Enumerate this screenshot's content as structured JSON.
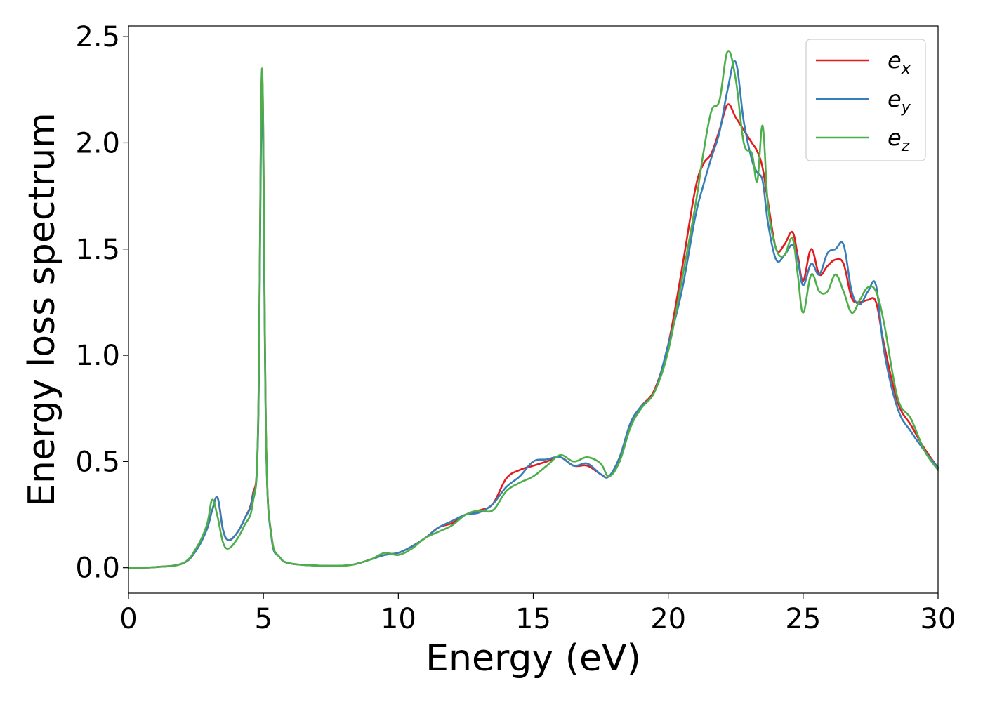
{
  "chart_data": {
    "type": "line",
    "title": "",
    "xlabel": "Energy (eV)",
    "ylabel": "Energy loss spectrum",
    "xlim": [
      0,
      30
    ],
    "ylim": [
      -0.12,
      2.55
    ],
    "xticks": [
      0,
      5,
      10,
      15,
      20,
      25,
      30
    ],
    "yticks": [
      0.0,
      0.5,
      1.0,
      1.5,
      2.0,
      2.5
    ],
    "xtick_labels": [
      "0",
      "5",
      "10",
      "15",
      "20",
      "25",
      "30"
    ],
    "ytick_labels": [
      "0.0",
      "0.5",
      "1.0",
      "1.5",
      "2.0",
      "2.5"
    ],
    "grid": false,
    "legend_position": "top-right",
    "series": [
      {
        "name": "e_x",
        "label_base": "e",
        "label_sub": "x",
        "color": "#e41a1c",
        "x": [
          0,
          1,
          2,
          2.5,
          2.9,
          3.1,
          3.3,
          3.5,
          3.7,
          4.0,
          4.3,
          4.6,
          4.8,
          4.95,
          5.1,
          5.3,
          5.6,
          6.0,
          7.0,
          8.0,
          8.5,
          9.0,
          9.5,
          10.0,
          10.5,
          11.0,
          11.5,
          12.0,
          12.5,
          13.0,
          13.5,
          14.0,
          14.5,
          15.0,
          15.5,
          16.0,
          16.5,
          17.0,
          17.5,
          17.8,
          18.2,
          18.6,
          19.0,
          19.5,
          20.0,
          20.5,
          21.0,
          21.3,
          21.6,
          21.9,
          22.2,
          22.5,
          22.8,
          23.1,
          23.3,
          23.5,
          23.7,
          24.0,
          24.3,
          24.6,
          24.8,
          25.0,
          25.3,
          25.6,
          25.9,
          26.2,
          26.5,
          26.8,
          27.1,
          27.4,
          27.7,
          28.0,
          28.5,
          29.0,
          29.5,
          30.0
        ],
        "y": [
          0.0,
          0.003,
          0.02,
          0.08,
          0.18,
          0.27,
          0.33,
          0.18,
          0.13,
          0.16,
          0.23,
          0.34,
          0.65,
          2.33,
          0.6,
          0.15,
          0.05,
          0.02,
          0.01,
          0.01,
          0.02,
          0.04,
          0.06,
          0.07,
          0.1,
          0.14,
          0.19,
          0.21,
          0.25,
          0.27,
          0.3,
          0.42,
          0.46,
          0.48,
          0.5,
          0.52,
          0.48,
          0.48,
          0.44,
          0.43,
          0.52,
          0.68,
          0.76,
          0.84,
          1.05,
          1.4,
          1.78,
          1.9,
          1.95,
          2.06,
          2.18,
          2.12,
          2.06,
          2.0,
          1.96,
          1.88,
          1.72,
          1.5,
          1.52,
          1.58,
          1.47,
          1.35,
          1.5,
          1.38,
          1.42,
          1.45,
          1.43,
          1.27,
          1.25,
          1.26,
          1.25,
          1.05,
          0.78,
          0.67,
          0.56,
          0.47
        ]
      },
      {
        "name": "e_y",
        "label_base": "e",
        "label_sub": "y",
        "color": "#377eb8",
        "x": [
          0,
          1,
          2,
          2.5,
          2.9,
          3.1,
          3.3,
          3.5,
          3.7,
          4.0,
          4.3,
          4.6,
          4.8,
          4.95,
          5.1,
          5.3,
          5.6,
          6.0,
          7.0,
          8.0,
          8.5,
          9.0,
          9.5,
          10.0,
          10.5,
          11.0,
          11.5,
          12.0,
          12.5,
          13.0,
          13.5,
          14.0,
          14.5,
          15.0,
          15.5,
          16.0,
          16.5,
          17.0,
          17.5,
          17.8,
          18.2,
          18.6,
          19.0,
          19.5,
          20.0,
          20.5,
          21.0,
          21.3,
          21.6,
          21.9,
          22.2,
          22.5,
          22.8,
          23.1,
          23.3,
          23.5,
          23.7,
          24.0,
          24.3,
          24.6,
          24.8,
          25.0,
          25.3,
          25.6,
          25.9,
          26.2,
          26.5,
          26.8,
          27.1,
          27.4,
          27.7,
          28.0,
          28.5,
          29.0,
          29.5,
          30.0
        ],
        "y": [
          0.0,
          0.003,
          0.02,
          0.08,
          0.18,
          0.27,
          0.33,
          0.18,
          0.13,
          0.16,
          0.23,
          0.33,
          0.62,
          2.2,
          0.58,
          0.14,
          0.05,
          0.02,
          0.01,
          0.01,
          0.02,
          0.04,
          0.06,
          0.07,
          0.1,
          0.14,
          0.19,
          0.22,
          0.25,
          0.26,
          0.3,
          0.38,
          0.43,
          0.5,
          0.51,
          0.52,
          0.48,
          0.49,
          0.44,
          0.43,
          0.52,
          0.68,
          0.76,
          0.83,
          1.05,
          1.3,
          1.65,
          1.8,
          1.93,
          2.05,
          2.25,
          2.38,
          2.1,
          1.92,
          1.86,
          1.82,
          1.62,
          1.45,
          1.47,
          1.52,
          1.45,
          1.33,
          1.43,
          1.38,
          1.48,
          1.5,
          1.52,
          1.3,
          1.24,
          1.3,
          1.33,
          1.02,
          0.75,
          0.64,
          0.55,
          0.47
        ]
      },
      {
        "name": "e_z",
        "label_base": "e",
        "label_sub": "z",
        "color": "#4daf4a",
        "x": [
          0,
          1,
          2,
          2.5,
          2.9,
          3.1,
          3.3,
          3.5,
          3.7,
          4.0,
          4.3,
          4.6,
          4.8,
          4.95,
          5.1,
          5.3,
          5.6,
          6.0,
          7.0,
          8.0,
          8.5,
          9.0,
          9.5,
          10.0,
          10.5,
          11.0,
          11.5,
          12.0,
          12.5,
          13.0,
          13.5,
          14.0,
          14.5,
          15.0,
          15.5,
          16.0,
          16.5,
          17.0,
          17.5,
          17.8,
          18.2,
          18.6,
          19.0,
          19.5,
          20.0,
          20.5,
          21.0,
          21.3,
          21.6,
          21.9,
          22.2,
          22.5,
          22.8,
          23.1,
          23.3,
          23.5,
          23.7,
          24.0,
          24.3,
          24.6,
          24.8,
          25.0,
          25.3,
          25.6,
          25.9,
          26.2,
          26.5,
          26.8,
          27.1,
          27.4,
          27.7,
          28.0,
          28.5,
          29.0,
          29.5,
          30.0
        ],
        "y": [
          0.0,
          0.003,
          0.02,
          0.09,
          0.2,
          0.32,
          0.24,
          0.12,
          0.09,
          0.13,
          0.2,
          0.3,
          0.66,
          2.35,
          0.6,
          0.15,
          0.05,
          0.02,
          0.01,
          0.01,
          0.02,
          0.04,
          0.07,
          0.06,
          0.09,
          0.14,
          0.17,
          0.2,
          0.25,
          0.27,
          0.27,
          0.36,
          0.4,
          0.43,
          0.48,
          0.53,
          0.5,
          0.52,
          0.49,
          0.43,
          0.5,
          0.66,
          0.75,
          0.83,
          1.02,
          1.35,
          1.7,
          1.95,
          2.15,
          2.2,
          2.43,
          2.3,
          2.0,
          1.95,
          1.82,
          2.08,
          1.7,
          1.5,
          1.47,
          1.55,
          1.38,
          1.2,
          1.38,
          1.3,
          1.3,
          1.38,
          1.3,
          1.2,
          1.26,
          1.32,
          1.3,
          1.15,
          0.8,
          0.7,
          0.55,
          0.46
        ]
      }
    ]
  }
}
